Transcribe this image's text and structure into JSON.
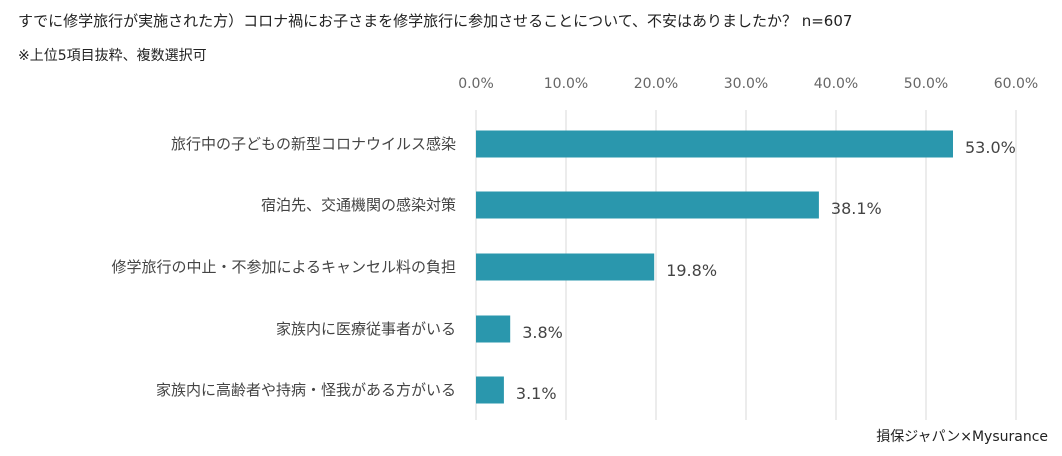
{
  "header": {
    "title": "すでに修学旅行が実施された方）コロナ禍にお子さまを修学旅行に参加させることについて、不安はありましたか？ n=607",
    "subtitle": "※上位5項目抜粋、複数選択可"
  },
  "footer": {
    "credit": "損保ジャパン×Mysurance"
  },
  "colors": {
    "bar": "#2a97ad",
    "grid": "#d9d9d9",
    "axis_text": "#666666"
  },
  "chart_data": {
    "type": "bar",
    "orientation": "horizontal",
    "title": "すでに修学旅行が実施された方）コロナ禍にお子さまを修学旅行に参加させることについて、不安はありましたか？ n=607",
    "categories": [
      "旅行中の子どもの新型コロナウイルス感染",
      "宿泊先、交通機関の感染対策",
      "修学旅行の中止・不参加によるキャンセル料の負担",
      "家族内に医療従事者がいる",
      "家族内に高齢者や持病・怪我がある方がいる"
    ],
    "values": [
      53.0,
      38.1,
      19.8,
      3.8,
      3.1
    ],
    "value_labels": [
      "53.0%",
      "38.1%",
      "19.8%",
      "3.8%",
      "3.1%"
    ],
    "xlim": [
      0,
      60
    ],
    "ticks": [
      0,
      10,
      20,
      30,
      40,
      50,
      60
    ],
    "tick_labels": [
      "0.0%",
      "10.0%",
      "20.0%",
      "30.0%",
      "40.0%",
      "50.0%",
      "60.0%"
    ],
    "xlabel": "",
    "ylabel": "",
    "grid": true,
    "legend": "none"
  }
}
